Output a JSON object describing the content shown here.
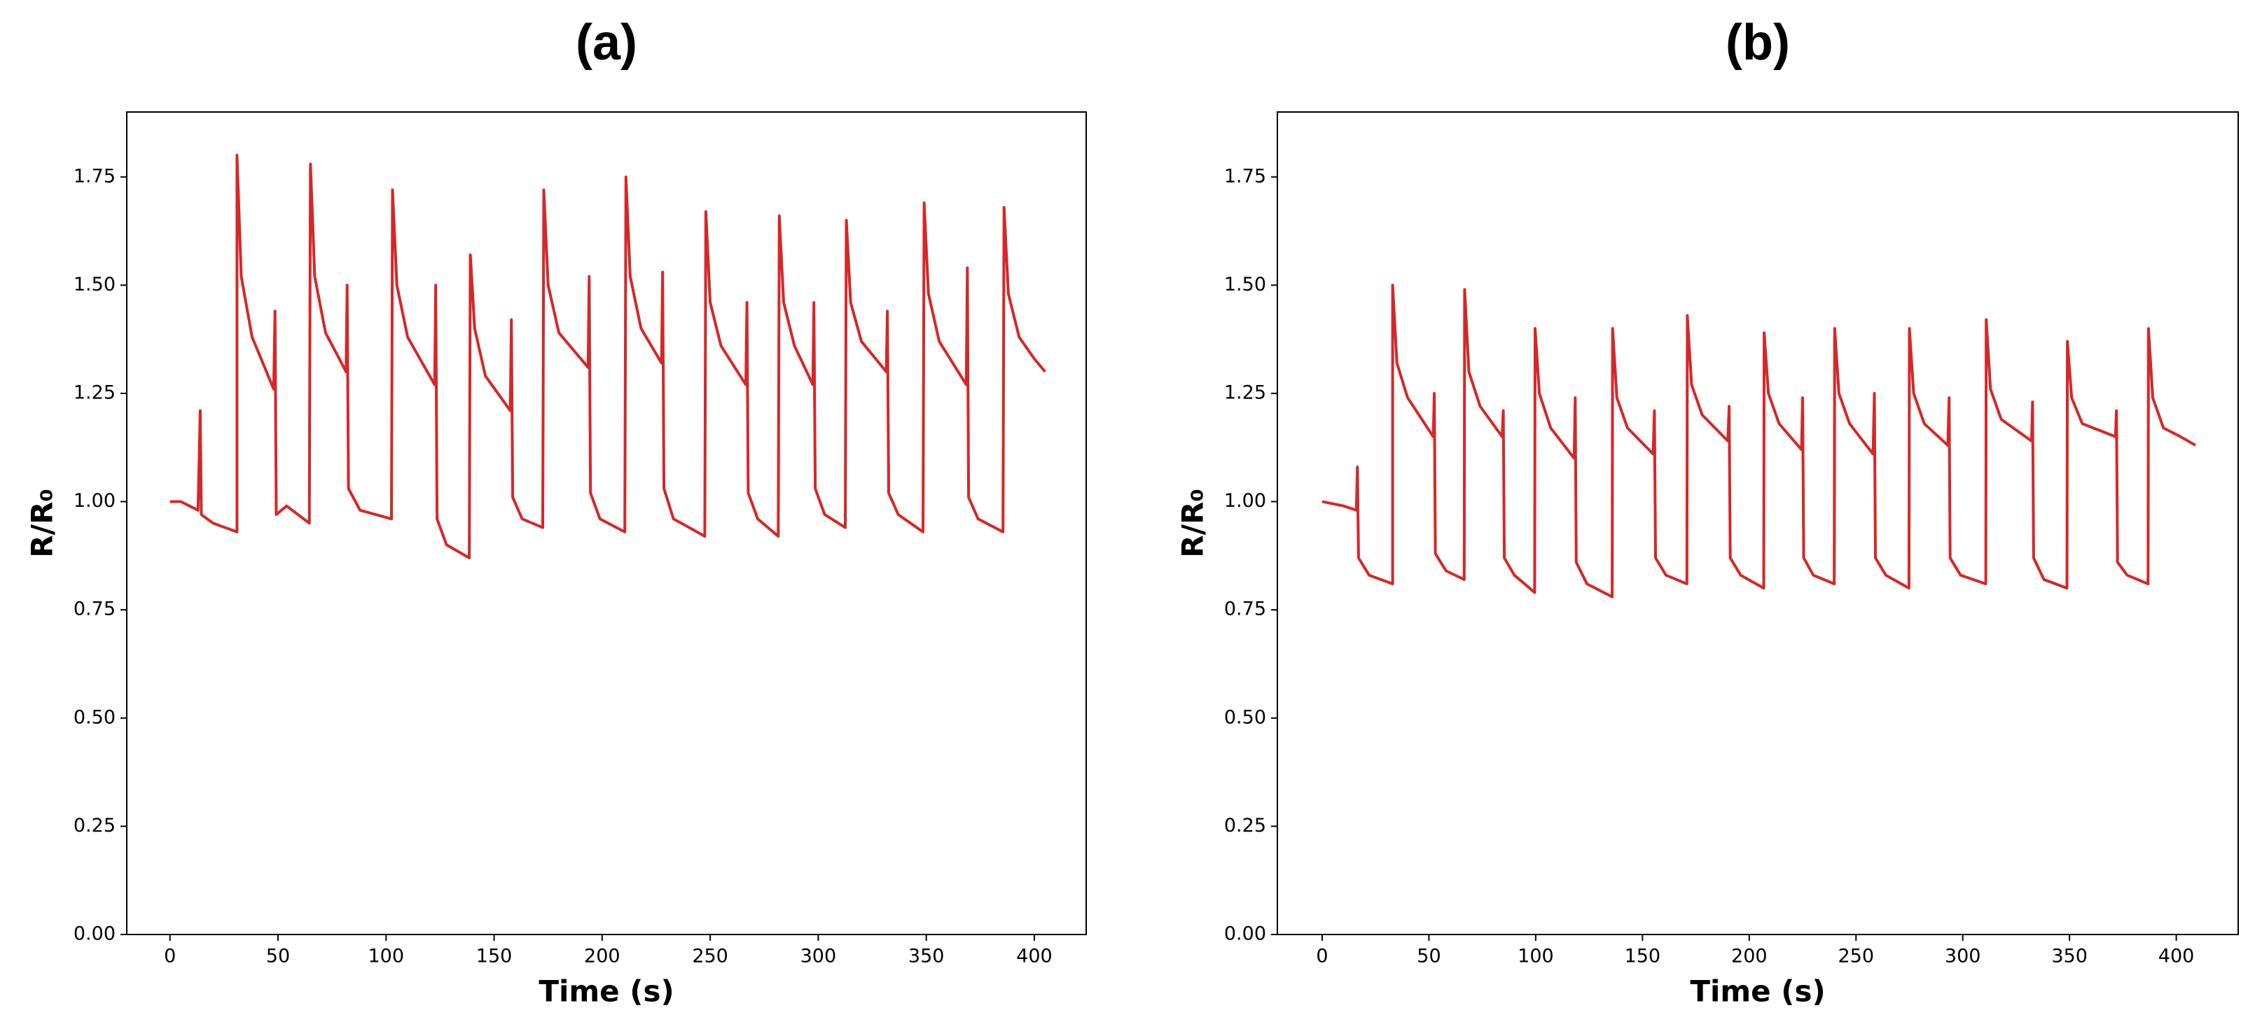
{
  "chart_data": [
    {
      "type": "line",
      "title": "(a)",
      "x_label": "Time (s)",
      "y_label": "R/R₀",
      "color": "#d62728",
      "xlim": [
        -20,
        424
      ],
      "ylim": [
        0,
        1.9
      ],
      "xticks": [
        0,
        50,
        100,
        150,
        200,
        250,
        300,
        350,
        400
      ],
      "yticks": [
        {
          "value": 0,
          "label": "0.00"
        },
        {
          "value": 0.25,
          "label": "0.25"
        },
        {
          "value": 0.5,
          "label": "0.50"
        },
        {
          "value": 0.75,
          "label": "0.75"
        },
        {
          "value": 1,
          "label": "1.00"
        },
        {
          "value": 1.25,
          "label": "1.25"
        },
        {
          "value": 1.5,
          "label": "1.50"
        },
        {
          "value": 1.75,
          "label": "1.75"
        }
      ],
      "x": [
        0,
        5,
        13,
        14,
        14.5,
        20,
        31,
        31,
        33,
        38,
        48,
        48.6,
        49.2,
        54,
        64.5,
        65,
        67,
        72,
        81.5,
        82,
        82.6,
        88,
        102.5,
        103,
        105,
        110,
        122.5,
        123,
        123.6,
        128,
        138.5,
        139,
        141,
        146,
        157.5,
        158,
        158.6,
        163,
        172.5,
        173,
        175,
        180,
        193.5,
        194,
        194.6,
        199,
        210.5,
        211,
        213,
        218,
        227.5,
        228,
        228.6,
        233,
        247.5,
        248,
        250,
        255,
        266.5,
        267,
        267.6,
        272,
        281.5,
        282,
        284,
        289,
        297.5,
        298,
        298.6,
        303,
        312.5,
        313,
        315,
        320,
        331.5,
        332,
        332.6,
        337,
        348.5,
        349,
        351,
        356,
        368.5,
        369,
        369.6,
        374,
        385.5,
        386,
        388,
        393,
        400,
        405
      ],
      "values": [
        1.0,
        1.0,
        0.98,
        1.21,
        0.97,
        0.95,
        0.93,
        1.8,
        1.52,
        1.38,
        1.26,
        1.44,
        0.97,
        0.99,
        0.95,
        1.78,
        1.52,
        1.39,
        1.3,
        1.5,
        1.03,
        0.98,
        0.96,
        1.72,
        1.5,
        1.38,
        1.27,
        1.5,
        0.96,
        0.9,
        0.87,
        1.57,
        1.4,
        1.29,
        1.21,
        1.42,
        1.01,
        0.96,
        0.94,
        1.72,
        1.5,
        1.39,
        1.31,
        1.52,
        1.02,
        0.96,
        0.93,
        1.75,
        1.52,
        1.4,
        1.32,
        1.53,
        1.03,
        0.96,
        0.92,
        1.67,
        1.46,
        1.36,
        1.27,
        1.46,
        1.02,
        0.96,
        0.92,
        1.66,
        1.46,
        1.36,
        1.27,
        1.46,
        1.03,
        0.97,
        0.94,
        1.65,
        1.46,
        1.37,
        1.3,
        1.44,
        1.02,
        0.97,
        0.93,
        1.69,
        1.48,
        1.37,
        1.27,
        1.54,
        1.01,
        0.96,
        0.93,
        1.68,
        1.48,
        1.38,
        1.33,
        1.3
      ]
    },
    {
      "type": "line",
      "title": "(b)",
      "x_label": "Time (s)",
      "y_label": "R/R₀",
      "color": "#d62728",
      "xlim": [
        -21,
        429
      ],
      "ylim": [
        0,
        1.9
      ],
      "xticks": [
        0,
        50,
        100,
        150,
        200,
        250,
        300,
        350,
        400
      ],
      "yticks": [
        {
          "value": 0,
          "label": "0.00"
        },
        {
          "value": 0.25,
          "label": "0.25"
        },
        {
          "value": 0.5,
          "label": "0.50"
        },
        {
          "value": 0.75,
          "label": "0.75"
        },
        {
          "value": 1,
          "label": "1.00"
        },
        {
          "value": 1.25,
          "label": "1.25"
        },
        {
          "value": 1.5,
          "label": "1.50"
        },
        {
          "value": 1.75,
          "label": "1.75"
        }
      ],
      "x": [
        0,
        10,
        16,
        16.5,
        17,
        22,
        33,
        33,
        35,
        40,
        52,
        52.5,
        53,
        58,
        66.5,
        66.7,
        68.7,
        74,
        84.3,
        84.8,
        85.3,
        90,
        99.5,
        99.7,
        101.7,
        107,
        118,
        118.5,
        119,
        124,
        135.8,
        136,
        138,
        143,
        155,
        155.6,
        156.1,
        161,
        170.8,
        171,
        173,
        178,
        190,
        190.6,
        191.1,
        196,
        206.8,
        207,
        209,
        214,
        224.5,
        225,
        225.5,
        230,
        239.8,
        240,
        242,
        247,
        258,
        258.6,
        259.1,
        264,
        274.8,
        275,
        277,
        282,
        293,
        293.6,
        294.1,
        299,
        310.8,
        311,
        313,
        318,
        332.2,
        332.7,
        333.2,
        338,
        348.8,
        349,
        351,
        356,
        371.5,
        372,
        372.5,
        377,
        386.8,
        387,
        389,
        394,
        402,
        409
      ],
      "values": [
        1.0,
        0.99,
        0.98,
        1.08,
        0.87,
        0.83,
        0.81,
        1.5,
        1.32,
        1.24,
        1.15,
        1.25,
        0.88,
        0.84,
        0.82,
        1.49,
        1.3,
        1.22,
        1.15,
        1.21,
        0.87,
        0.83,
        0.79,
        1.4,
        1.25,
        1.17,
        1.1,
        1.24,
        0.86,
        0.81,
        0.78,
        1.4,
        1.24,
        1.17,
        1.11,
        1.21,
        0.87,
        0.83,
        0.81,
        1.43,
        1.27,
        1.2,
        1.14,
        1.22,
        0.87,
        0.83,
        0.8,
        1.39,
        1.25,
        1.18,
        1.12,
        1.24,
        0.87,
        0.83,
        0.81,
        1.4,
        1.25,
        1.18,
        1.11,
        1.25,
        0.87,
        0.83,
        0.8,
        1.4,
        1.25,
        1.18,
        1.13,
        1.24,
        0.87,
        0.83,
        0.81,
        1.42,
        1.26,
        1.19,
        1.14,
        1.23,
        0.87,
        0.82,
        0.8,
        1.37,
        1.24,
        1.18,
        1.15,
        1.21,
        0.86,
        0.83,
        0.81,
        1.4,
        1.24,
        1.17,
        1.15,
        1.13
      ]
    }
  ]
}
